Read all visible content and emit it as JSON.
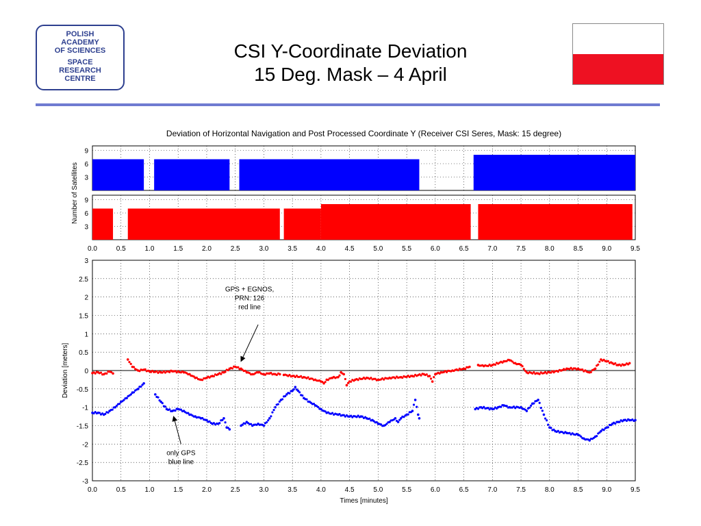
{
  "header": {
    "logo_lines": [
      "POLISH",
      "ACADEMY",
      "OF SCIENCES",
      "SPACE",
      "RESEARCH",
      "CENTRE"
    ],
    "title_line1": "CSI Y-Coordinate Deviation",
    "title_line2": "15 Deg. Mask – 4 April",
    "flag_colors": {
      "top": "#ffffff",
      "bottom": "#ee1122"
    },
    "accent_color": "#6f7bd1",
    "logo_color": "#2d3f8f"
  },
  "chart_data": [
    {
      "type": "bar",
      "panel": "satellites-gps",
      "title": "Deviation of Horizontal Navigation and Post Processed Coordinate Y (Receiver CSI Seres, Mask: 15 degree)",
      "ylabel": "Number of Satellites",
      "xlim": [
        0,
        9.5
      ],
      "ylim": [
        0,
        10
      ],
      "yticks": [
        3,
        6,
        9
      ],
      "grid": true,
      "color": "#0000ff",
      "segments": [
        {
          "start": 0.0,
          "end": 0.9,
          "value": 7
        },
        {
          "start": 1.08,
          "end": 2.4,
          "value": 7
        },
        {
          "start": 2.57,
          "end": 5.72,
          "value": 7
        },
        {
          "start": 6.67,
          "end": 9.5,
          "value": 8
        }
      ]
    },
    {
      "type": "bar",
      "panel": "satellites-egnos",
      "ylim": [
        0,
        10
      ],
      "yticks": [
        3,
        6,
        9
      ],
      "xlim": [
        0,
        9.5
      ],
      "xticks": [
        "0.0",
        "0.5",
        "1.0",
        "1.5",
        "2.0",
        "2.5",
        "3.0",
        "3.5",
        "4.0",
        "4.5",
        "5.0",
        "5.5",
        "6.0",
        "6.5",
        "7.0",
        "7.5",
        "8.0",
        "8.5",
        "9.0",
        "9.5"
      ],
      "grid": true,
      "color": "#ff0000",
      "segments": [
        {
          "start": 0.0,
          "end": 0.36,
          "value": 7
        },
        {
          "start": 0.62,
          "end": 3.28,
          "value": 7
        },
        {
          "start": 3.35,
          "end": 4.0,
          "value": 7
        },
        {
          "start": 4.0,
          "end": 6.62,
          "value": 8
        },
        {
          "start": 6.75,
          "end": 9.45,
          "value": 8
        }
      ]
    },
    {
      "type": "scatter",
      "panel": "deviation",
      "xlabel": "Times [minutes]",
      "ylabel": "Deviation [meters]",
      "xlim": [
        0,
        9.5
      ],
      "ylim": [
        -3,
        3
      ],
      "xticks": [
        "0.0",
        "0.5",
        "1.0",
        "1.5",
        "2.0",
        "2.5",
        "3.0",
        "3.5",
        "4.0",
        "4.5",
        "5.0",
        "5.5",
        "6.0",
        "6.5",
        "7.0",
        "7.5",
        "8.0",
        "8.5",
        "9.0",
        "9.5"
      ],
      "yticks": [
        "-3",
        "-2.5",
        "-2",
        "-1.5",
        "-1",
        "-0.5",
        "0",
        "0.5",
        "1",
        "1.5",
        "2",
        "2.5",
        "3"
      ],
      "grid": true,
      "series": [
        {
          "color": "#ff0000",
          "segments": [
            [
              [
                0.0,
                -0.07
              ],
              [
                0.1,
                -0.05
              ],
              [
                0.2,
                -0.1
              ],
              [
                0.3,
                -0.03
              ],
              [
                0.36,
                -0.08
              ]
            ],
            [
              [
                0.62,
                0.3
              ],
              [
                0.7,
                0.1
              ],
              [
                0.8,
                0.0
              ],
              [
                0.9,
                0.02
              ],
              [
                1.0,
                -0.02
              ],
              [
                1.2,
                -0.05
              ],
              [
                1.4,
                -0.02
              ],
              [
                1.6,
                -0.05
              ],
              [
                1.7,
                -0.1
              ],
              [
                1.8,
                -0.2
              ],
              [
                1.9,
                -0.25
              ],
              [
                2.0,
                -0.2
              ],
              [
                2.1,
                -0.15
              ],
              [
                2.2,
                -0.1
              ],
              [
                2.3,
                -0.05
              ],
              [
                2.4,
                0.05
              ],
              [
                2.5,
                0.1
              ],
              [
                2.6,
                0.05
              ],
              [
                2.7,
                -0.05
              ],
              [
                2.8,
                -0.1
              ],
              [
                2.9,
                -0.05
              ],
              [
                3.0,
                -0.1
              ],
              [
                3.1,
                -0.08
              ],
              [
                3.2,
                -0.1
              ],
              [
                3.28,
                -0.1
              ]
            ],
            [
              [
                3.35,
                -0.12
              ],
              [
                3.5,
                -0.15
              ],
              [
                3.7,
                -0.18
              ],
              [
                3.9,
                -0.25
              ],
              [
                4.0,
                -0.3
              ],
              [
                4.05,
                -0.35
              ],
              [
                4.1,
                -0.25
              ],
              [
                4.2,
                -0.2
              ],
              [
                4.3,
                -0.18
              ],
              [
                4.35,
                -0.05
              ],
              [
                4.4,
                -0.1
              ],
              [
                4.45,
                -0.4
              ],
              [
                4.5,
                -0.3
              ],
              [
                4.6,
                -0.25
              ],
              [
                4.8,
                -0.2
              ],
              [
                5.0,
                -0.25
              ],
              [
                5.2,
                -0.2
              ],
              [
                5.4,
                -0.18
              ],
              [
                5.6,
                -0.15
              ],
              [
                5.8,
                -0.1
              ],
              [
                5.9,
                -0.15
              ],
              [
                5.95,
                -0.3
              ],
              [
                6.0,
                -0.1
              ],
              [
                6.1,
                -0.05
              ],
              [
                6.3,
                0.0
              ],
              [
                6.5,
                0.05
              ],
              [
                6.6,
                0.1
              ]
            ],
            [
              [
                6.75,
                0.15
              ],
              [
                6.85,
                0.12
              ],
              [
                7.0,
                0.15
              ],
              [
                7.2,
                0.25
              ],
              [
                7.3,
                0.28
              ],
              [
                7.4,
                0.2
              ],
              [
                7.5,
                0.15
              ],
              [
                7.6,
                -0.05
              ],
              [
                7.8,
                -0.08
              ],
              [
                8.0,
                -0.05
              ],
              [
                8.2,
                0.0
              ],
              [
                8.3,
                0.05
              ],
              [
                8.5,
                0.05
              ],
              [
                8.7,
                -0.05
              ],
              [
                8.8,
                0.05
              ],
              [
                8.9,
                0.3
              ],
              [
                9.0,
                0.25
              ],
              [
                9.1,
                0.2
              ],
              [
                9.2,
                0.15
              ],
              [
                9.3,
                0.15
              ],
              [
                9.4,
                0.2
              ]
            ]
          ]
        },
        {
          "color": "#0000ff",
          "segments": [
            [
              [
                0.0,
                -1.15
              ],
              [
                0.1,
                -1.15
              ],
              [
                0.2,
                -1.2
              ],
              [
                0.3,
                -1.1
              ],
              [
                0.4,
                -1.0
              ],
              [
                0.5,
                -0.85
              ],
              [
                0.6,
                -0.75
              ],
              [
                0.7,
                -0.6
              ],
              [
                0.8,
                -0.5
              ],
              [
                0.9,
                -0.35
              ]
            ],
            [
              [
                1.1,
                -0.65
              ],
              [
                1.2,
                -0.85
              ],
              [
                1.3,
                -1.05
              ],
              [
                1.4,
                -1.1
              ],
              [
                1.5,
                -1.05
              ],
              [
                1.6,
                -1.1
              ],
              [
                1.7,
                -1.2
              ],
              [
                1.8,
                -1.25
              ],
              [
                1.9,
                -1.3
              ],
              [
                2.0,
                -1.35
              ],
              [
                2.1,
                -1.45
              ],
              [
                2.2,
                -1.45
              ],
              [
                2.3,
                -1.3
              ],
              [
                2.35,
                -1.55
              ],
              [
                2.4,
                -1.6
              ]
            ],
            [
              [
                2.6,
                -1.5
              ],
              [
                2.7,
                -1.4
              ],
              [
                2.8,
                -1.5
              ],
              [
                2.9,
                -1.45
              ],
              [
                3.0,
                -1.5
              ],
              [
                3.1,
                -1.3
              ],
              [
                3.2,
                -1.0
              ],
              [
                3.3,
                -0.8
              ],
              [
                3.4,
                -0.65
              ],
              [
                3.5,
                -0.55
              ],
              [
                3.55,
                -0.45
              ],
              [
                3.6,
                -0.55
              ],
              [
                3.7,
                -0.75
              ],
              [
                3.8,
                -0.85
              ],
              [
                3.9,
                -0.95
              ],
              [
                4.0,
                -1.05
              ],
              [
                4.1,
                -1.15
              ],
              [
                4.3,
                -1.2
              ],
              [
                4.5,
                -1.25
              ],
              [
                4.7,
                -1.25
              ],
              [
                4.8,
                -1.3
              ],
              [
                4.9,
                -1.35
              ],
              [
                5.0,
                -1.45
              ],
              [
                5.1,
                -1.5
              ],
              [
                5.2,
                -1.4
              ],
              [
                5.3,
                -1.3
              ],
              [
                5.35,
                -1.4
              ],
              [
                5.4,
                -1.3
              ],
              [
                5.5,
                -1.2
              ],
              [
                5.6,
                -1.1
              ],
              [
                5.65,
                -0.8
              ],
              [
                5.7,
                -1.2
              ],
              [
                5.72,
                -1.3
              ]
            ],
            [
              [
                6.7,
                -1.05
              ],
              [
                6.8,
                -1.0
              ],
              [
                7.0,
                -1.05
              ],
              [
                7.1,
                -1.0
              ],
              [
                7.2,
                -0.95
              ],
              [
                7.3,
                -1.0
              ],
              [
                7.5,
                -1.0
              ],
              [
                7.6,
                -1.1
              ],
              [
                7.7,
                -0.9
              ],
              [
                7.8,
                -0.8
              ],
              [
                7.9,
                -1.2
              ],
              [
                8.0,
                -1.55
              ],
              [
                8.1,
                -1.65
              ],
              [
                8.3,
                -1.7
              ],
              [
                8.5,
                -1.75
              ],
              [
                8.6,
                -1.85
              ],
              [
                8.7,
                -1.9
              ],
              [
                8.8,
                -1.8
              ],
              [
                8.9,
                -1.65
              ],
              [
                9.0,
                -1.55
              ],
              [
                9.1,
                -1.45
              ],
              [
                9.2,
                -1.4
              ],
              [
                9.3,
                -1.35
              ],
              [
                9.4,
                -1.35
              ],
              [
                9.5,
                -1.35
              ]
            ]
          ]
        }
      ],
      "annotations": [
        {
          "lines": [
            "GPS + EGNOS,",
            "PRN: 126",
            "red line"
          ],
          "text_x": 2.75,
          "text_y": 2.15,
          "arrow_from": [
            2.9,
            1.25
          ],
          "arrow_to": [
            2.6,
            0.25
          ]
        },
        {
          "lines": [
            "only GPS",
            "blue line"
          ],
          "text_x": 1.55,
          "text_y": -2.3,
          "arrow_from": [
            1.55,
            -2.0
          ],
          "arrow_to": [
            1.42,
            -1.25
          ]
        }
      ]
    }
  ]
}
